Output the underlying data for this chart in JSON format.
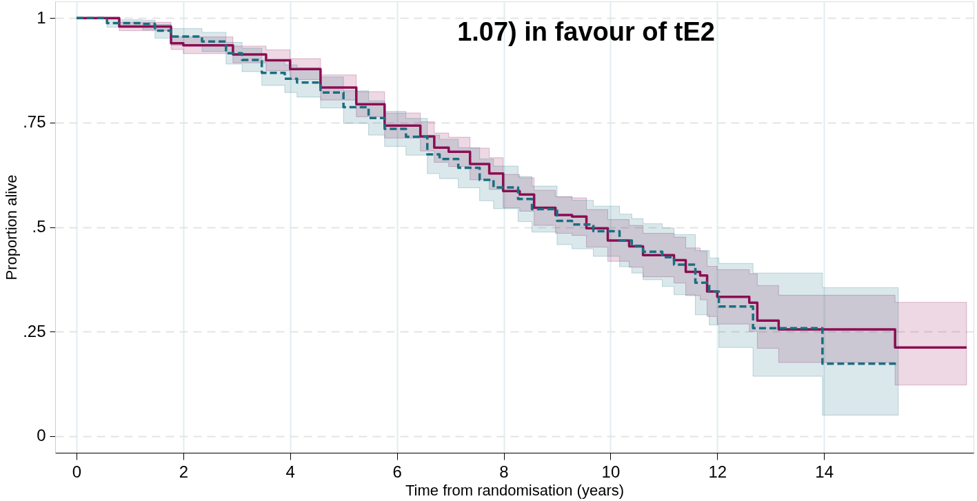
{
  "chart_data": {
    "type": "step",
    "annotations": [
      "1.07) in favour of tE2"
    ],
    "xlabel": "Time from randomisation (years)",
    "ylabel": "Proportion alive",
    "xlim": [
      -0.4,
      16.8
    ],
    "xticks": [
      0,
      2,
      4,
      6,
      8,
      10,
      12,
      14
    ],
    "ylim": [
      -0.04,
      1.04
    ],
    "yticks": [
      0,
      {
        "value": 0.25,
        "label": ".25"
      },
      {
        "value": 0.5,
        "label": ".5"
      },
      {
        "value": 0.75,
        "label": ".75"
      },
      1
    ],
    "grid": true,
    "series": [
      {
        "color": "#8c0d52",
        "line_style": "solid",
        "x": [
          0,
          0.8,
          1.77,
          2,
          2.93,
          3.55,
          4,
          4.57,
          5.24,
          5.77,
          6.44,
          6.7,
          6.97,
          7.37,
          7.73,
          7.99,
          8.3,
          8.57,
          8.97,
          9.28,
          9.55,
          9.95,
          10.35,
          10.61,
          11.19,
          11.41,
          11.68,
          11.81,
          12,
          12.6,
          12.75,
          13.15,
          15.33,
          16.67
        ],
        "values": [
          1,
          0.98,
          0.94,
          0.935,
          0.913,
          0.899,
          0.878,
          0.834,
          0.794,
          0.743,
          0.717,
          0.69,
          0.68,
          0.651,
          0.628,
          0.586,
          0.578,
          0.546,
          0.529,
          0.525,
          0.497,
          0.468,
          0.454,
          0.433,
          0.421,
          0.393,
          0.384,
          0.346,
          0.333,
          0.319,
          0.276,
          0.255,
          0.212,
          0.212
        ],
        "lower": [
          1,
          0.97,
          0.925,
          0.915,
          0.893,
          0.874,
          0.853,
          0.804,
          0.764,
          0.713,
          0.682,
          0.655,
          0.645,
          0.613,
          0.59,
          0.546,
          0.538,
          0.504,
          0.485,
          0.48,
          0.452,
          0.418,
          0.404,
          0.381,
          0.366,
          0.336,
          0.326,
          0.286,
          0.268,
          0.25,
          0.21,
          0.176,
          0.122,
          0.122
        ],
        "upper": [
          1,
          0.99,
          0.955,
          0.955,
          0.933,
          0.924,
          0.903,
          0.864,
          0.824,
          0.773,
          0.752,
          0.725,
          0.715,
          0.689,
          0.666,
          0.626,
          0.618,
          0.588,
          0.573,
          0.57,
          0.542,
          0.518,
          0.504,
          0.485,
          0.476,
          0.45,
          0.442,
          0.406,
          0.398,
          0.388,
          0.36,
          0.337,
          0.32,
          0.32
        ]
      },
      {
        "color": "#1a6e80",
        "line_style": "dashed",
        "x": [
          0,
          0.57,
          1.24,
          1.47,
          1.77,
          2.35,
          2.8,
          3.1,
          3.47,
          3.9,
          4.13,
          4.57,
          5.0,
          5.47,
          5.77,
          6.17,
          6.57,
          6.8,
          7.15,
          7.55,
          7.81,
          8.27,
          8.53,
          9.0,
          9.28,
          9.68,
          10.17,
          10.4,
          10.61,
          10.97,
          11.19,
          11.59,
          11.85,
          12.03,
          12.67,
          13.97,
          15.39
        ],
        "values": [
          1,
          0.988,
          0.986,
          0.97,
          0.956,
          0.944,
          0.916,
          0.9,
          0.869,
          0.855,
          0.846,
          0.822,
          0.787,
          0.761,
          0.735,
          0.716,
          0.674,
          0.663,
          0.642,
          0.613,
          0.595,
          0.567,
          0.543,
          0.515,
          0.506,
          0.49,
          0.468,
          0.455,
          0.441,
          0.428,
          0.41,
          0.367,
          0.346,
          0.31,
          0.258,
          0.173,
          0.173
        ],
        "lower": [
          1,
          0.978,
          0.972,
          0.952,
          0.935,
          0.92,
          0.89,
          0.872,
          0.839,
          0.822,
          0.811,
          0.785,
          0.748,
          0.72,
          0.693,
          0.672,
          0.628,
          0.616,
          0.594,
          0.563,
          0.544,
          0.513,
          0.488,
          0.458,
          0.448,
          0.43,
          0.405,
          0.39,
          0.374,
          0.358,
          0.338,
          0.29,
          0.266,
          0.212,
          0.143,
          0.05,
          0.05
        ],
        "upper": [
          1,
          0.996,
          0.995,
          0.985,
          0.975,
          0.966,
          0.942,
          0.928,
          0.899,
          0.888,
          0.881,
          0.859,
          0.826,
          0.802,
          0.777,
          0.76,
          0.72,
          0.71,
          0.69,
          0.663,
          0.646,
          0.621,
          0.598,
          0.572,
          0.564,
          0.55,
          0.531,
          0.52,
          0.508,
          0.498,
          0.482,
          0.444,
          0.426,
          0.413,
          0.39,
          0.355,
          0.355
        ]
      }
    ]
  }
}
